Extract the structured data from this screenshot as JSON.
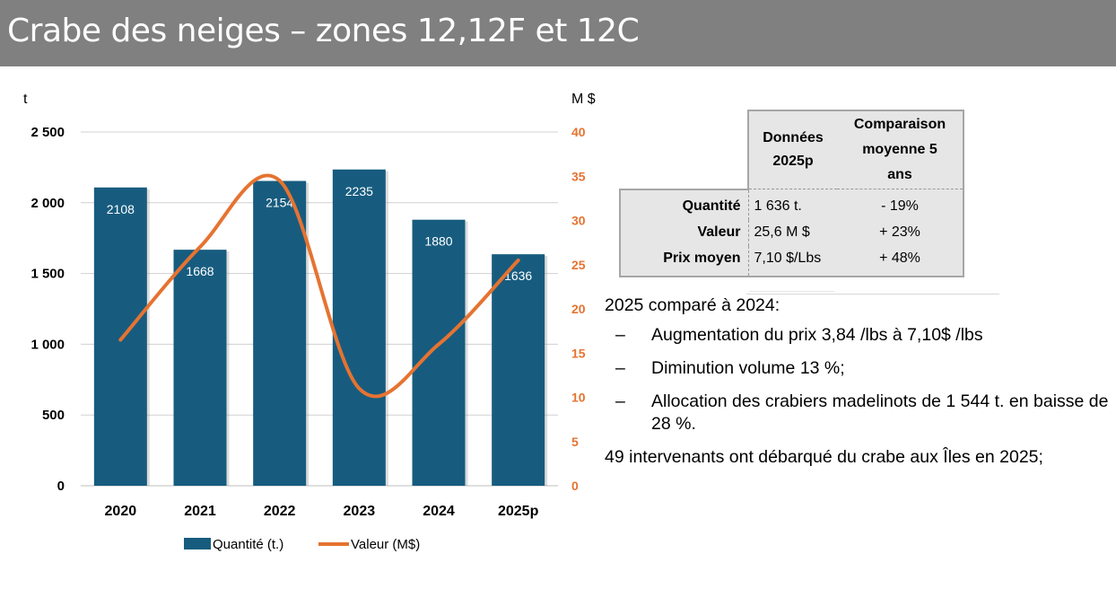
{
  "title": "Crabe des neiges – zones 12,12F et 12C",
  "chart_data": {
    "type": "bar",
    "categories": [
      "2020",
      "2021",
      "2022",
      "2023",
      "2024",
      "2025p"
    ],
    "series": [
      {
        "name": "Quantité (t.)",
        "type": "bar",
        "axis": "left",
        "values": [
          2108,
          1668,
          2154,
          2235,
          1880,
          1636
        ],
        "color": "#175c7f"
      },
      {
        "name": "Valeur (M$)",
        "type": "line",
        "axis": "right",
        "values": [
          16.5,
          27,
          34.5,
          11,
          16,
          25.5
        ],
        "color": "#e67331"
      }
    ],
    "y_left": {
      "label": "t",
      "ylim": [
        0,
        2500
      ],
      "ticks": [
        0,
        500,
        1000,
        1500,
        2000,
        2500
      ],
      "tick_labels": [
        "0",
        "500",
        "1 000",
        "1 500",
        "2 000",
        "2 500"
      ]
    },
    "y_right": {
      "label": "M $",
      "ylim": [
        0,
        40
      ],
      "ticks": [
        0,
        5,
        10,
        15,
        20,
        25,
        30,
        35,
        40
      ],
      "tick_labels": [
        "0",
        "5",
        "10",
        "15",
        "20",
        "25",
        "30",
        "35",
        "40"
      ]
    },
    "grid": true,
    "legend": "bottom"
  },
  "table": {
    "headers": [
      "",
      "Données 2025p",
      "Comparaison moyenne 5 ans"
    ],
    "header_lines": [
      [
        "Données",
        "2025p"
      ],
      [
        "Comparaison",
        "moyenne 5",
        "ans"
      ]
    ],
    "rows": [
      {
        "label": "Quantité",
        "value": "1 636 t.",
        "comparison": "- 19%"
      },
      {
        "label": "Valeur",
        "value": "25,6 M $",
        "comparison": "+ 23%"
      },
      {
        "label": "Prix moyen",
        "value": "7,10 $/Lbs",
        "comparison": "+ 48%"
      }
    ]
  },
  "notes": {
    "intro": "2025 comparé à 2024:",
    "dash": "–",
    "bullets": [
      "Augmentation du prix 3,84 /lbs à 7,10$ /lbs",
      "Diminution volume 13 %;",
      "Allocation des crabiers madelinots de 1 544 t. en baisse de 28 %."
    ],
    "closing": "49 intervenants ont débarqué du crabe aux Îles en 2025;"
  },
  "colors": {
    "bar": "#175c7f",
    "line": "#e67331",
    "right_axis_text": "#e67331",
    "header_bg": "#808080"
  }
}
